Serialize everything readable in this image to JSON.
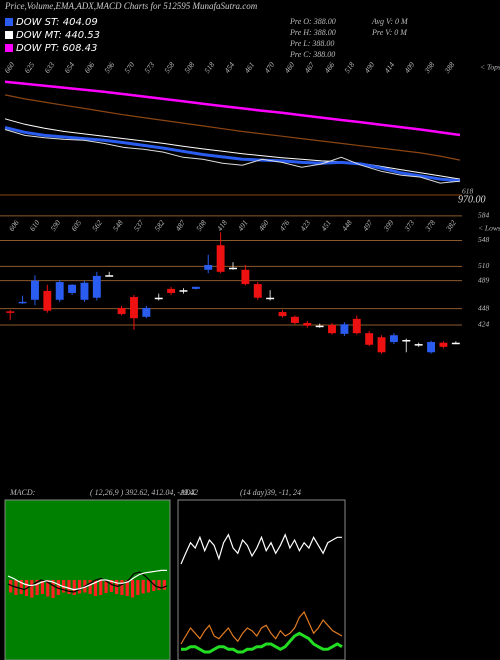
{
  "chart_data": [
    {
      "type": "line",
      "title": "Price,Volume,EMA,ADX,MACD Charts for 512595 MunafaSutra.com",
      "annotations": [
        "Pre O: 388.00",
        "Pre H: 388.00",
        "Pre L: 388.00",
        "Pre C: 388.00",
        "Avg V: 0 M",
        "Pre V: 0 M"
      ],
      "top_labels": [
        "660",
        "625",
        "633",
        "654",
        "606",
        "596",
        "570",
        "573",
        "558",
        "508",
        "518",
        "454",
        "461",
        "470",
        "460",
        "467",
        "466",
        "518",
        "490",
        "414",
        "409",
        "398",
        "388"
      ],
      "side_label": "< Tops",
      "bottom_labels": [
        "618",
        "970.00"
      ],
      "ylim": [
        380,
        720
      ],
      "series": [
        {
          "color": "#ff00ff",
          "width": 2.5,
          "values": [
            665,
            660,
            655,
            650,
            645,
            640,
            634,
            628,
            622,
            616,
            610,
            604,
            598,
            592,
            587,
            581,
            575,
            569,
            563,
            557,
            551,
            545,
            538,
            531
          ]
        },
        {
          "color": "#8b4513",
          "width": 1.2,
          "values": [
            632,
            622,
            614,
            606,
            598,
            590,
            582,
            575,
            568,
            561,
            554,
            547,
            540,
            534,
            528,
            522,
            516,
            510,
            504,
            498,
            492,
            486,
            478,
            468
          ]
        },
        {
          "name": "DOW MT: 440.53",
          "color": "#ffffff",
          "width": 1,
          "values": [
            572,
            558,
            548,
            540,
            534,
            528,
            522,
            516,
            510,
            503,
            496,
            490,
            484,
            479,
            474,
            470,
            466,
            464,
            460,
            452,
            444,
            436,
            428,
            420
          ]
        },
        {
          "name": "DOW ST: 404.09",
          "color": "#2a5cf0",
          "width": 3,
          "values": [
            550,
            538,
            530,
            526,
            522,
            518,
            512,
            505,
            498,
            490,
            482,
            476,
            470,
            468,
            466,
            462,
            460,
            462,
            458,
            448,
            436,
            428,
            420,
            416
          ]
        },
        {
          "color": "#dddddd",
          "width": 1,
          "values": [
            545,
            530,
            524,
            520,
            518,
            510,
            500,
            495,
            488,
            475,
            470,
            460,
            455,
            470,
            462,
            450,
            458,
            475,
            455,
            440,
            430,
            425,
            410,
            415
          ]
        },
        {
          "name": "DOW PT: 608.43",
          "color": "#ff00ff",
          "width": 0,
          "values": []
        }
      ]
    },
    {
      "type": "candlestick",
      "top_labels": [
        "606",
        "610",
        "590",
        "605",
        "562",
        "548",
        "537",
        "582",
        "487",
        "508",
        "418",
        "491",
        "460",
        "476",
        "423",
        "451",
        "448",
        "497",
        "399",
        "373",
        "378",
        "382"
      ],
      "side_label": "< Lows",
      "ylim": [
        380,
        600
      ],
      "yticks": [
        584,
        548,
        510,
        489,
        448,
        424
      ],
      "grid_color": "#8b5a2b",
      "up_color": "#2a5cf0",
      "down_color": "#ee1111",
      "flat_color": "#ffffff",
      "open": [
        444,
        457,
        461,
        474,
        461,
        471,
        461,
        464,
        497,
        449,
        465,
        436,
        464,
        477,
        475,
        477,
        505,
        541,
        508,
        505,
        484,
        464,
        443,
        436,
        427,
        423,
        424,
        411,
        433,
        412,
        406,
        399,
        402,
        396,
        384,
        398,
        398
      ],
      "high": [
        446,
        467,
        497,
        483,
        490,
        484,
        489,
        502,
        502,
        452,
        468,
        452,
        470,
        480,
        478,
        480,
        527,
        560,
        516,
        512,
        487,
        475,
        446,
        438,
        430,
        426,
        427,
        428,
        438,
        415,
        409,
        412,
        404,
        398,
        401,
        400,
        400
      ],
      "low": [
        431,
        455,
        453,
        442,
        458,
        468,
        458,
        460,
        495,
        438,
        417,
        434,
        460,
        468,
        470,
        476,
        500,
        500,
        505,
        482,
        461,
        460,
        435,
        425,
        420,
        420,
        410,
        408,
        410,
        393,
        382,
        396,
        384,
        392,
        382,
        390,
        396
      ],
      "close": [
        442,
        458,
        489,
        445,
        487,
        483,
        486,
        496,
        497,
        440,
        434,
        449,
        464,
        471,
        475,
        480,
        512,
        502,
        508,
        484,
        464,
        464,
        437,
        427,
        423,
        423,
        412,
        425,
        412,
        395,
        384,
        409,
        402,
        396,
        399,
        392,
        398
      ]
    },
    {
      "type": "macd",
      "title": "MACD:",
      "subtitle": "( 12,26,9 ) 392.62, 412.04, -19.42",
      "background": "#008000",
      "ylim": [
        300,
        500
      ],
      "y2lim": [
        -160,
        160
      ],
      "series": [
        {
          "kind": "bar",
          "axis": "y2",
          "color": "#ff2222",
          "values": [
            -25,
            -30,
            -28,
            -32,
            -35,
            -30,
            -28,
            -33,
            -36,
            -30,
            -25,
            -28,
            -30,
            -27,
            -25,
            -28,
            -32,
            -30,
            -26,
            -24,
            -28,
            -30,
            -32,
            -35,
            -30,
            -27,
            -25,
            -22,
            -20,
            -19.42
          ]
        },
        {
          "kind": "line",
          "color": "#000000",
          "values": [
            395,
            392,
            390,
            388,
            392,
            396,
            400,
            398,
            394,
            390,
            388,
            386,
            385,
            388,
            392,
            396,
            400,
            402,
            398,
            394,
            392,
            395,
            400,
            408,
            410,
            405,
            398,
            392,
            390,
            392.62
          ]
        },
        {
          "kind": "line",
          "color": "#ffffff",
          "values": [
            405,
            402,
            398,
            395,
            393,
            394,
            397,
            399,
            398,
            395,
            392,
            390,
            388,
            389,
            391,
            394,
            397,
            400,
            400,
            398,
            396,
            396,
            398,
            403,
            407,
            409,
            410,
            411,
            412,
            412.04
          ]
        }
      ]
    },
    {
      "type": "adx",
      "title": "ADX",
      "subtitle": "(14 day)39, -11, 24",
      "background": "#000000",
      "ylim": [
        0,
        60
      ],
      "series": [
        {
          "kind": "line",
          "color": "#ffffff",
          "values": [
            36,
            40,
            44,
            42,
            46,
            41,
            45,
            43,
            38,
            44,
            47,
            42,
            40,
            45,
            43,
            39,
            42,
            46,
            41,
            44,
            40,
            43,
            47,
            42,
            45,
            41,
            44,
            42,
            46,
            43,
            40,
            44,
            45,
            46,
            46
          ]
        },
        {
          "kind": "line",
          "color": "#e07b20",
          "values": [
            6,
            9,
            12,
            10,
            8,
            11,
            13,
            9,
            8,
            10,
            12,
            9,
            7,
            10,
            12,
            11,
            9,
            12,
            13,
            10,
            8,
            11,
            9,
            10,
            12,
            16,
            18,
            14,
            10,
            12,
            15,
            13,
            11,
            10,
            9
          ]
        },
        {
          "kind": "line",
          "color": "#22dd22",
          "width": 3,
          "values": [
            4,
            4,
            5,
            5,
            4,
            3,
            3,
            4,
            5,
            5,
            4,
            4,
            3,
            3,
            4,
            4,
            5,
            5,
            6,
            6,
            5,
            4,
            5,
            7,
            9,
            10,
            9,
            8,
            6,
            5,
            4,
            4,
            5,
            6,
            5
          ]
        }
      ]
    }
  ]
}
